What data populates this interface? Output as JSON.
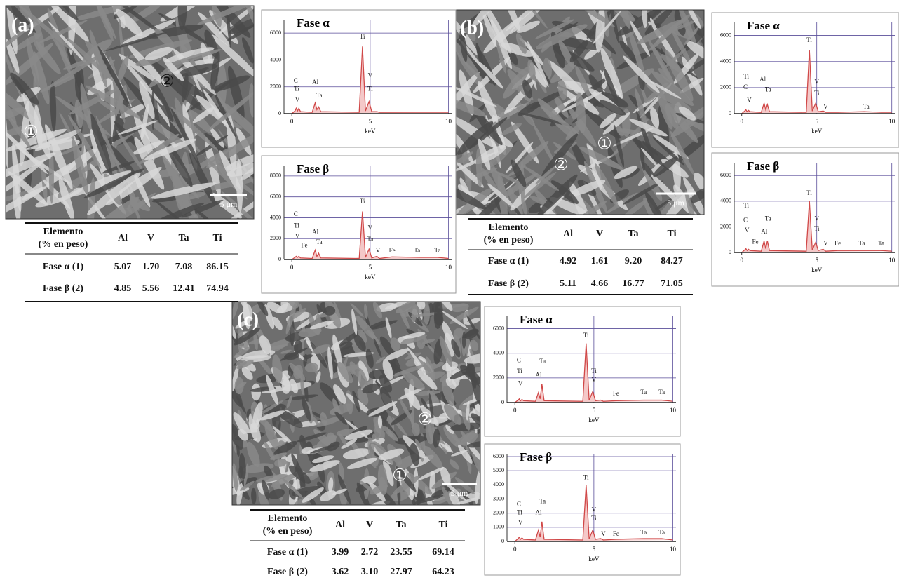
{
  "panels": [
    {
      "label": "(a)",
      "markers": [
        "①",
        "②"
      ],
      "scale_bar": "5 μm",
      "table": {
        "header": [
          "Elemento",
          "(% en peso)"
        ],
        "columns": [
          "Al",
          "V",
          "Ta",
          "Ti"
        ],
        "rows": [
          {
            "label": "Fase α (1)",
            "values": [
              "5.07",
              "1.70",
              "7.08",
              "86.15"
            ]
          },
          {
            "label": "Fase β (2)",
            "values": [
              "4.85",
              "5.56",
              "12.41",
              "74.94"
            ]
          }
        ]
      }
    },
    {
      "label": "(b)",
      "markers": [
        "①",
        "②"
      ],
      "scale_bar": "5 μm",
      "table": {
        "header": [
          "Elemento",
          "(% en peso)"
        ],
        "columns": [
          "Al",
          "V",
          "Ta",
          "Ti"
        ],
        "rows": [
          {
            "label": "Fase α (1)",
            "values": [
              "4.92",
              "1.61",
              "9.20",
              "84.27"
            ]
          },
          {
            "label": "Fase β (2)",
            "values": [
              "5.11",
              "4.66",
              "16.77",
              "71.05"
            ]
          }
        ]
      }
    },
    {
      "label": "(c)",
      "markers": [
        "②",
        "①"
      ],
      "scale_bar": "5 μm",
      "table": {
        "header": [
          "Elemento",
          "(% en peso)"
        ],
        "columns": [
          "Al",
          "V",
          "Ta",
          "Ti"
        ],
        "rows": [
          {
            "label": "Fase α (1)",
            "values": [
              "3.99",
              "2.72",
              "23.55",
              "69.14"
            ]
          },
          {
            "label": "Fase β (2)",
            "values": [
              "3.62",
              "3.10",
              "27.97",
              "64.23"
            ]
          }
        ]
      }
    }
  ],
  "chart_data": [
    {
      "type": "area",
      "title": "Fase α",
      "xlabel": "keV",
      "color": "#d04848",
      "fill": "#f4c8c8",
      "x": [
        0,
        0.2,
        0.28,
        0.36,
        0.45,
        0.55,
        1.3,
        1.49,
        1.6,
        1.71,
        1.85,
        4.3,
        4.51,
        4.7,
        4.93,
        5.1,
        5.43,
        5.6,
        6.4,
        8.15,
        9.3,
        10
      ],
      "values": [
        0,
        200,
        400,
        200,
        400,
        150,
        100,
        800,
        300,
        500,
        150,
        100,
        5000,
        200,
        900,
        150,
        150,
        100,
        100,
        100,
        100,
        100
      ],
      "xlim": [
        -0.5,
        10.2
      ],
      "xticks": [
        0,
        5,
        10
      ],
      "ylim": [
        0,
        7000
      ],
      "yticks": [
        0,
        2000,
        4000,
        6000
      ],
      "grid": true,
      "annotations": [
        {
          "text": "C",
          "x": 0.25,
          "y": 2400
        },
        {
          "text": "Ti",
          "x": 0.3,
          "y": 1800
        },
        {
          "text": "V",
          "x": 0.35,
          "y": 1000
        },
        {
          "text": "Al",
          "x": 1.5,
          "y": 2300
        },
        {
          "text": "Ta",
          "x": 1.75,
          "y": 1300
        },
        {
          "text": "Ti",
          "x": 4.5,
          "y": 5700
        },
        {
          "text": "V",
          "x": 5.0,
          "y": 2800
        },
        {
          "text": "Ti",
          "x": 5.0,
          "y": 1800
        }
      ]
    },
    {
      "type": "area",
      "title": "Fase β",
      "xlabel": "keV",
      "color": "#d04848",
      "fill": "#f4c8c8",
      "x": [
        0,
        0.2,
        0.28,
        0.36,
        0.45,
        0.55,
        1.3,
        1.49,
        1.6,
        1.71,
        1.85,
        4.3,
        4.51,
        4.7,
        4.93,
        5.1,
        5.43,
        5.6,
        6.4,
        8.15,
        9.3,
        10
      ],
      "values": [
        0,
        200,
        300,
        200,
        300,
        150,
        100,
        900,
        300,
        600,
        150,
        100,
        4600,
        200,
        1000,
        150,
        300,
        100,
        250,
        200,
        200,
        100
      ],
      "xlim": [
        -0.5,
        10.2
      ],
      "xticks": [
        0,
        5,
        10
      ],
      "ylim": [
        0,
        9000
      ],
      "yticks": [
        0,
        2000,
        4000,
        6000,
        8000
      ],
      "grid": true,
      "annotations": [
        {
          "text": "C",
          "x": 0.25,
          "y": 4300
        },
        {
          "text": "Ti",
          "x": 0.3,
          "y": 3200
        },
        {
          "text": "V",
          "x": 0.35,
          "y": 2200
        },
        {
          "text": "Fe",
          "x": 0.8,
          "y": 1300
        },
        {
          "text": "Al",
          "x": 1.5,
          "y": 2600
        },
        {
          "text": "Ta",
          "x": 1.75,
          "y": 1600
        },
        {
          "text": "Ti",
          "x": 4.5,
          "y": 5500
        },
        {
          "text": "V",
          "x": 5.0,
          "y": 3000
        },
        {
          "text": "Ta",
          "x": 5.0,
          "y": 1900
        },
        {
          "text": "V",
          "x": 5.5,
          "y": 800
        },
        {
          "text": "Fe",
          "x": 6.4,
          "y": 800
        },
        {
          "text": "Ta",
          "x": 8.0,
          "y": 800
        },
        {
          "text": "Ta",
          "x": 9.3,
          "y": 800
        }
      ]
    },
    {
      "type": "area",
      "title": "Fase α",
      "xlabel": "keV",
      "color": "#d04848",
      "fill": "#f4c8c8",
      "x": [
        0,
        0.2,
        0.28,
        0.36,
        0.45,
        0.55,
        1.3,
        1.49,
        1.6,
        1.71,
        1.85,
        4.3,
        4.51,
        4.7,
        4.93,
        5.1,
        5.43,
        5.6,
        6.4,
        8.15,
        9.3,
        10
      ],
      "values": [
        0,
        200,
        300,
        150,
        250,
        150,
        100,
        800,
        300,
        700,
        150,
        100,
        4900,
        200,
        800,
        150,
        200,
        100,
        100,
        150,
        100,
        100
      ],
      "xlim": [
        -0.5,
        10.2
      ],
      "xticks": [
        0,
        5,
        10
      ],
      "ylim": [
        0,
        7000
      ],
      "yticks": [
        0,
        2000,
        4000,
        6000
      ],
      "grid": true,
      "annotations": [
        {
          "text": "Ti",
          "x": 0.3,
          "y": 2800
        },
        {
          "text": "C",
          "x": 0.25,
          "y": 2000
        },
        {
          "text": "V",
          "x": 0.5,
          "y": 1000
        },
        {
          "text": "Al",
          "x": 1.4,
          "y": 2600
        },
        {
          "text": "Ta",
          "x": 1.75,
          "y": 1800
        },
        {
          "text": "Ti",
          "x": 4.5,
          "y": 5600
        },
        {
          "text": "V",
          "x": 5.0,
          "y": 2400
        },
        {
          "text": "Ti",
          "x": 5.0,
          "y": 1500
        },
        {
          "text": "V",
          "x": 5.6,
          "y": 500
        },
        {
          "text": "Ta",
          "x": 8.3,
          "y": 500
        }
      ]
    },
    {
      "type": "area",
      "title": "Fase β",
      "xlabel": "keV",
      "color": "#d04848",
      "fill": "#f4c8c8",
      "x": [
        0,
        0.2,
        0.28,
        0.36,
        0.45,
        0.55,
        1.3,
        1.49,
        1.6,
        1.71,
        1.85,
        4.3,
        4.51,
        4.7,
        4.93,
        5.1,
        5.43,
        5.6,
        6.4,
        8.15,
        9.3,
        10
      ],
      "values": [
        0,
        200,
        300,
        150,
        250,
        150,
        100,
        900,
        300,
        900,
        150,
        100,
        4000,
        200,
        800,
        150,
        250,
        100,
        150,
        150,
        150,
        100
      ],
      "xlim": [
        -0.5,
        10.2
      ],
      "xticks": [
        0,
        5,
        10
      ],
      "ylim": [
        0,
        7000
      ],
      "yticks": [
        0,
        2000,
        4000,
        6000
      ],
      "grid": true,
      "annotations": [
        {
          "text": "Ti",
          "x": 0.3,
          "y": 3600
        },
        {
          "text": "C",
          "x": 0.25,
          "y": 2500
        },
        {
          "text": "V",
          "x": 0.35,
          "y": 1700
        },
        {
          "text": "Fe",
          "x": 0.9,
          "y": 800
        },
        {
          "text": "Ta",
          "x": 1.75,
          "y": 2600
        },
        {
          "text": "Al",
          "x": 1.5,
          "y": 1600
        },
        {
          "text": "Ti",
          "x": 4.5,
          "y": 4600
        },
        {
          "text": "V",
          "x": 5.0,
          "y": 2600
        },
        {
          "text": "Ti",
          "x": 5.0,
          "y": 1800
        },
        {
          "text": "V",
          "x": 5.6,
          "y": 700
        },
        {
          "text": "Fe",
          "x": 6.4,
          "y": 700
        },
        {
          "text": "Ta",
          "x": 8.0,
          "y": 700
        },
        {
          "text": "Ta",
          "x": 9.3,
          "y": 700
        }
      ]
    },
    {
      "type": "area",
      "title": "Fase α",
      "xlabel": "keV",
      "color": "#d04848",
      "fill": "#f4c8c8",
      "x": [
        0,
        0.2,
        0.28,
        0.36,
        0.45,
        0.55,
        1.3,
        1.49,
        1.6,
        1.71,
        1.85,
        4.3,
        4.51,
        4.7,
        4.93,
        5.1,
        5.43,
        5.6,
        6.4,
        8.15,
        9.3,
        10
      ],
      "values": [
        0,
        200,
        300,
        150,
        250,
        150,
        100,
        800,
        300,
        1500,
        150,
        100,
        4800,
        200,
        900,
        150,
        200,
        100,
        150,
        200,
        200,
        100
      ],
      "xlim": [
        -0.5,
        10.2
      ],
      "xticks": [
        0,
        5,
        10
      ],
      "ylim": [
        0,
        7000
      ],
      "yticks": [
        0,
        2000,
        4000,
        6000
      ],
      "grid": true,
      "annotations": [
        {
          "text": "C",
          "x": 0.25,
          "y": 3400
        },
        {
          "text": "Ti",
          "x": 0.3,
          "y": 2500
        },
        {
          "text": "V",
          "x": 0.35,
          "y": 1500
        },
        {
          "text": "Ta",
          "x": 1.75,
          "y": 3300
        },
        {
          "text": "Al",
          "x": 1.5,
          "y": 2200
        },
        {
          "text": "Ti",
          "x": 4.5,
          "y": 5400
        },
        {
          "text": "Ti",
          "x": 5.0,
          "y": 2500
        },
        {
          "text": "V",
          "x": 5.0,
          "y": 1800
        },
        {
          "text": "Fe",
          "x": 6.4,
          "y": 700
        },
        {
          "text": "Ta",
          "x": 8.15,
          "y": 800
        },
        {
          "text": "Ta",
          "x": 9.3,
          "y": 800
        }
      ]
    },
    {
      "type": "area",
      "title": "Fase β",
      "xlabel": "keV",
      "color": "#d04848",
      "fill": "#f4c8c8",
      "x": [
        0,
        0.2,
        0.28,
        0.36,
        0.45,
        0.55,
        1.3,
        1.49,
        1.6,
        1.71,
        1.85,
        4.3,
        4.51,
        4.7,
        4.93,
        5.1,
        5.43,
        5.6,
        6.4,
        8.15,
        9.3,
        10
      ],
      "values": [
        0,
        200,
        300,
        150,
        250,
        150,
        100,
        800,
        300,
        1400,
        150,
        100,
        4000,
        200,
        800,
        150,
        200,
        100,
        150,
        200,
        200,
        100
      ],
      "xlim": [
        -0.5,
        10.2
      ],
      "xticks": [
        0,
        5,
        10
      ],
      "ylim": [
        0,
        6200
      ],
      "yticks": [
        0,
        1000,
        2000,
        3000,
        4000,
        5000,
        6000
      ],
      "grid": true,
      "annotations": [
        {
          "text": "C",
          "x": 0.25,
          "y": 2600
        },
        {
          "text": "Ti",
          "x": 0.3,
          "y": 2000
        },
        {
          "text": "V",
          "x": 0.35,
          "y": 1300
        },
        {
          "text": "Ta",
          "x": 1.75,
          "y": 2800
        },
        {
          "text": "Al",
          "x": 1.5,
          "y": 2000
        },
        {
          "text": "Ti",
          "x": 4.5,
          "y": 4500
        },
        {
          "text": "V",
          "x": 5.0,
          "y": 2200
        },
        {
          "text": "Ti",
          "x": 5.0,
          "y": 1600
        },
        {
          "text": "V",
          "x": 5.6,
          "y": 500
        },
        {
          "text": "Fe",
          "x": 6.4,
          "y": 500
        },
        {
          "text": "Ta",
          "x": 8.15,
          "y": 600
        },
        {
          "text": "Ta",
          "x": 9.3,
          "y": 600
        }
      ]
    }
  ]
}
